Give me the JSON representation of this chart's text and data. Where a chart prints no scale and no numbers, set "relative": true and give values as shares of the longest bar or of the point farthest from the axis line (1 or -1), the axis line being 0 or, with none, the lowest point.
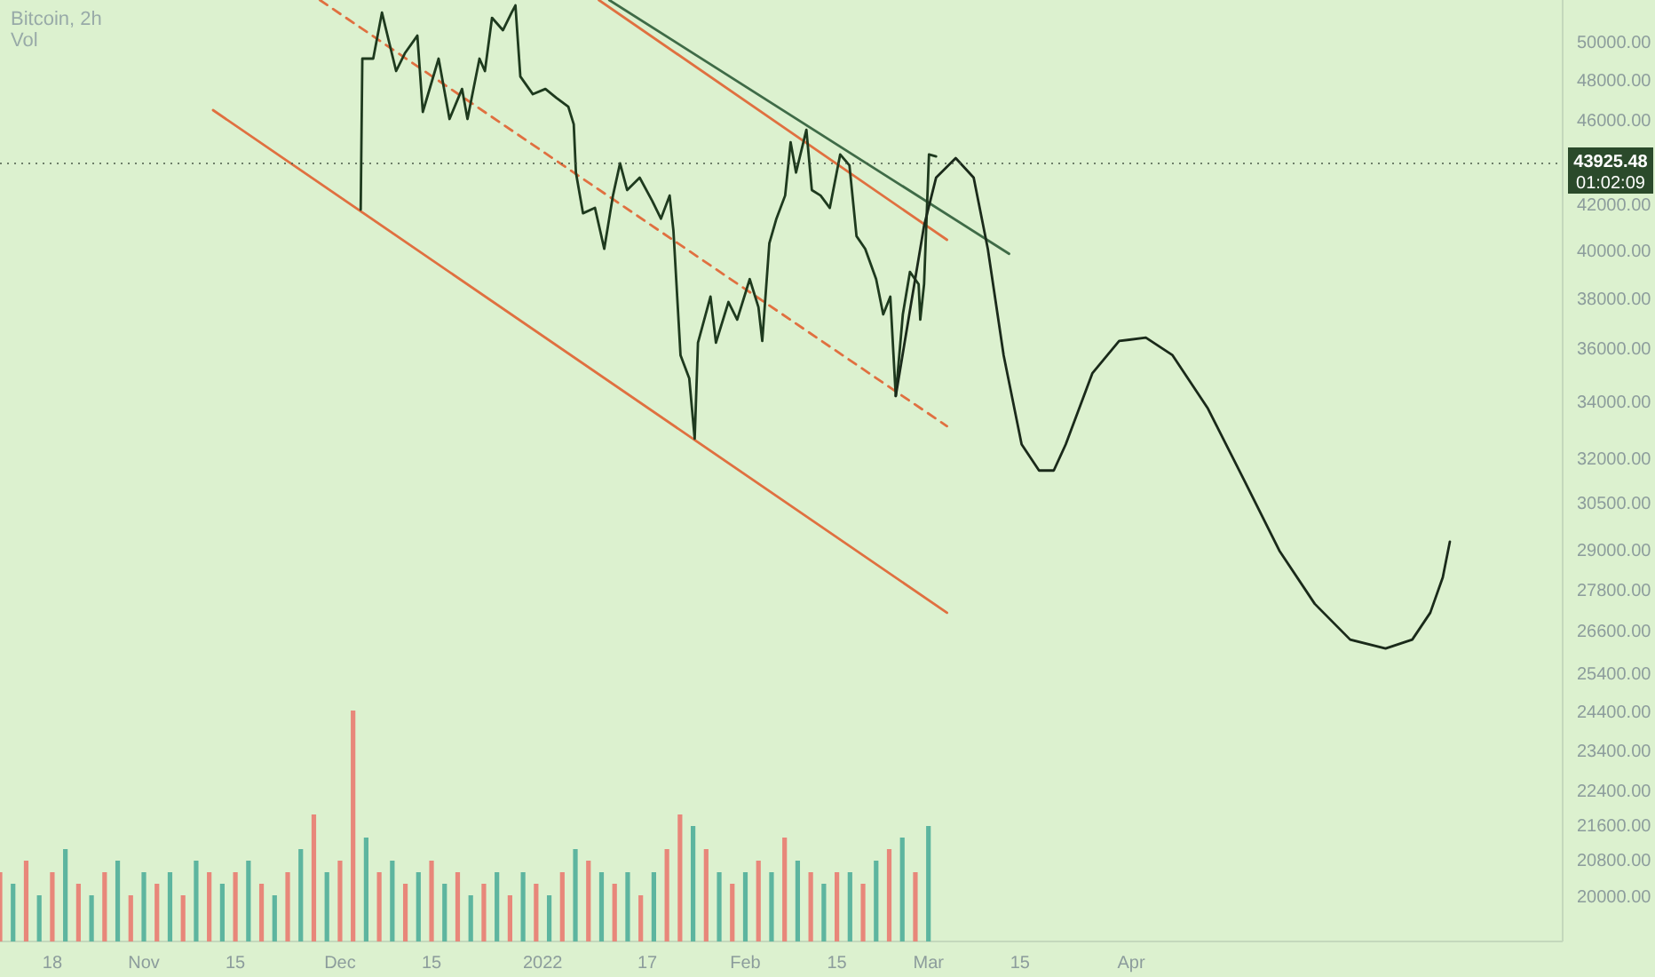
{
  "chart_data": [
    {
      "type": "line",
      "title": "Bitcoin, 2h",
      "log": "y",
      "xlim": [
        "2021-10-10",
        "2022-06-06"
      ],
      "xticks": [
        {
          "value": "2021-10-18",
          "label": "18"
        },
        {
          "value": "2021-11-01",
          "label": "Nov"
        },
        {
          "value": "2021-11-15",
          "label": "15"
        },
        {
          "value": "2021-12-01",
          "label": "Dec"
        },
        {
          "value": "2021-12-15",
          "label": "15"
        },
        {
          "value": "2022-01-01",
          "label": "2022"
        },
        {
          "value": "2022-01-17",
          "label": "17"
        },
        {
          "value": "2022-02-01",
          "label": "Feb"
        },
        {
          "value": "2022-02-15",
          "label": "15"
        },
        {
          "value": "2022-03-01",
          "label": "Mar"
        },
        {
          "value": "2022-03-15",
          "label": "15"
        },
        {
          "value": "2022-04-01",
          "label": "Apr"
        }
      ],
      "ylim": [
        19070,
        52340
      ],
      "yticks": [
        {
          "value": 50000,
          "label": "50000.00"
        },
        {
          "value": 48000,
          "label": "48000.00"
        },
        {
          "value": 46000,
          "label": "46000.00"
        },
        {
          "value": 42000,
          "label": "42000.00"
        },
        {
          "value": 40000,
          "label": "40000.00"
        },
        {
          "value": 38000,
          "label": "38000.00"
        },
        {
          "value": 36000,
          "label": "36000.00"
        },
        {
          "value": 34000,
          "label": "34000.00"
        },
        {
          "value": 32000,
          "label": "32000.00"
        },
        {
          "value": 30500,
          "label": "30500.00"
        },
        {
          "value": 29000,
          "label": "29000.00"
        },
        {
          "value": 27800,
          "label": "27800.00"
        },
        {
          "value": 26600,
          "label": "26600.00"
        },
        {
          "value": 25400,
          "label": "25400.00"
        },
        {
          "value": 24400,
          "label": "24400.00"
        },
        {
          "value": 23400,
          "label": "23400.00"
        },
        {
          "value": 22400,
          "label": "22400.00"
        },
        {
          "value": 21600,
          "label": "21600.00"
        },
        {
          "value": 20800,
          "label": "20800.00"
        },
        {
          "value": 20000,
          "label": "20000.00"
        }
      ],
      "ref_lines": [
        {
          "axis": "y",
          "value": 43925.48,
          "label": "43925.48",
          "color": "#4a5a4a",
          "line_style": "dotted"
        }
      ],
      "annotations": [
        "01:02:09"
      ],
      "series": [
        {
          "type": "line",
          "color": "#e07040",
          "line_style": "dashed",
          "x": [
            "2021-11-27T22:00",
            "2022-03-03T20:00"
          ],
          "values": [
            52340,
            33140
          ]
        },
        {
          "type": "line",
          "color": "#e07040",
          "line_style": "solid",
          "x": [
            "2021-11-11T14:00",
            "2022-03-03T20:00"
          ],
          "values": [
            46510,
            27130
          ]
        },
        {
          "type": "line",
          "color": "#e07040",
          "line_style": "solid",
          "x": [
            "2022-01-09T14:00",
            "2022-03-03T20:00"
          ],
          "values": [
            52340,
            40470
          ]
        },
        {
          "type": "line",
          "color": "#3f6b47",
          "line_style": "solid",
          "x": [
            "2022-01-11T04:00",
            "2022-03-13T08:00"
          ],
          "values": [
            52340,
            39870
          ]
        },
        {
          "type": "line",
          "color": "#1e3a1e",
          "line_style": "solid",
          "x": [
            "2021-12-04T04:00",
            "2021-12-04T10:00",
            "2021-12-06T02:00",
            "2021-12-07T10:00",
            "2021-12-09T14:00",
            "2021-12-10T22:00",
            "2021-12-12T20:00",
            "2021-12-13T16:00",
            "2021-12-16T02:00",
            "2021-12-17T18:00",
            "2021-12-19T16:00",
            "2021-12-20T12:00",
            "2021-12-22T08:00",
            "2021-12-23T04:00",
            "2021-12-24T06:00",
            "2021-12-25T22:00",
            "2021-12-27T06:00",
            "2021-12-27T20:00",
            "2021-12-28T14:00",
            "2021-12-30T12:00",
            "2022-01-01T10:00",
            "2022-01-03T02:00",
            "2022-01-04T22:00",
            "2022-01-05T18:00",
            "2022-01-06T02:00",
            "2022-01-07T04:00",
            "2022-01-09T00:00",
            "2022-01-10T10:00",
            "2022-01-11T18:00",
            "2022-01-12T20:00",
            "2022-01-13T22:00",
            "2022-01-15T20:00",
            "2022-01-17T18:00",
            "2022-01-19T02:00",
            "2022-01-20T10:00",
            "2022-01-21T00:00",
            "2022-01-22T02:00",
            "2022-01-23T10:00",
            "2022-01-24T06:00",
            "2022-01-24T18:00",
            "2022-01-26T16:00",
            "2022-01-27T12:00",
            "2022-01-29T10:00",
            "2022-01-30T18:00",
            "2022-02-01T16:00",
            "2022-02-03T00:00",
            "2022-02-03T14:00",
            "2022-02-04T16:00",
            "2022-02-05T18:00",
            "2022-02-07T02:00",
            "2022-02-07T22:00",
            "2022-02-08T18:00",
            "2022-02-10T08:00",
            "2022-02-11T04:00",
            "2022-02-12T12:00",
            "2022-02-13T22:00",
            "2022-02-15T12:00",
            "2022-02-16T22:00",
            "2022-02-18T00:00",
            "2022-02-19T08:00",
            "2022-02-21T00:00",
            "2022-02-22T02:00",
            "2022-02-23T04:00",
            "2022-02-24T00:00",
            "2022-02-25T02:00",
            "2022-02-26T04:00",
            "2022-02-27T12:00",
            "2022-02-27T18:00",
            "2022-02-28T08:00",
            "2022-03-01T02:00",
            "2022-03-02T04:00"
          ],
          "values": [
            41800,
            49150,
            49150,
            51640,
            48500,
            49430,
            50380,
            46420,
            49150,
            46070,
            47580,
            46070,
            49150,
            48500,
            51350,
            50670,
            51640,
            52040,
            48220,
            47310,
            47580,
            47130,
            46680,
            45810,
            43500,
            41640,
            41880,
            40080,
            42440,
            43930,
            42690,
            43260,
            42200,
            41400,
            42440,
            40860,
            35760,
            34880,
            32700,
            36240,
            38080,
            36240,
            37860,
            37150,
            38800,
            37650,
            36310,
            40320,
            41400,
            42440,
            44940,
            43500,
            45540,
            42690,
            42440,
            41880,
            44350,
            43840,
            40630,
            40080,
            38800,
            37360,
            38080,
            34230,
            37360,
            39100,
            38590,
            37150,
            38590,
            44350,
            44260
          ]
        },
        {
          "type": "line",
          "color": "#1a2a1a",
          "line_style": "solid",
          "x": [
            "2022-02-24T00:00",
            "2022-02-26T04:00",
            "2022-02-28T08:00",
            "2022-03-02T04:00",
            "2022-03-05T04:00",
            "2022-03-07T22:00",
            "2022-03-10T02:00",
            "2022-03-12T12:00",
            "2022-03-15T06:00",
            "2022-03-17T22:00",
            "2022-03-20T04:00",
            "2022-03-22T00:00",
            "2022-03-26T02:00",
            "2022-03-30T04:00",
            "2022-04-03T06:00",
            "2022-04-07T08:00",
            "2022-04-12T18:00",
            "2022-04-18T06:00",
            "2022-04-23T16:00",
            "2022-04-29T02:00",
            "2022-05-04T12:00",
            "2022-05-09T22:00",
            "2022-05-14T00:00",
            "2022-05-16T18:00",
            "2022-05-18T16:00",
            "2022-05-19T18:00"
          ],
          "values": [
            34230,
            37510,
            41090,
            43260,
            44180,
            43260,
            40080,
            35760,
            32500,
            31600,
            31600,
            32500,
            35080,
            36310,
            36440,
            35760,
            33770,
            31290,
            29000,
            27390,
            26360,
            26110,
            26360,
            27130,
            28180,
            29280
          ]
        }
      ]
    },
    {
      "type": "bar",
      "title": "Vol",
      "relative": true,
      "xlim": [
        "2021-10-10",
        "2022-06-06"
      ],
      "x": [
        "2021-10-10",
        "2021-10-12",
        "2021-10-14",
        "2021-10-16",
        "2021-10-18",
        "2021-10-20",
        "2021-10-22",
        "2021-10-24",
        "2021-10-26",
        "2021-10-28",
        "2021-10-30",
        "2021-11-01",
        "2021-11-03",
        "2021-11-05",
        "2021-11-07",
        "2021-11-09",
        "2021-11-11",
        "2021-11-13",
        "2021-11-15",
        "2021-11-17",
        "2021-11-19",
        "2021-11-21",
        "2021-11-23",
        "2021-11-25",
        "2021-11-27",
        "2021-11-29",
        "2021-12-01",
        "2021-12-03",
        "2021-12-05",
        "2021-12-07",
        "2021-12-09",
        "2021-12-11",
        "2021-12-13",
        "2021-12-15",
        "2021-12-17",
        "2021-12-19",
        "2021-12-21",
        "2021-12-23",
        "2021-12-25",
        "2021-12-27",
        "2021-12-29",
        "2021-12-31",
        "2022-01-02",
        "2022-01-04",
        "2022-01-06",
        "2022-01-08",
        "2022-01-10",
        "2022-01-12",
        "2022-01-14",
        "2022-01-16",
        "2022-01-18",
        "2022-01-20",
        "2022-01-22",
        "2022-01-24",
        "2022-01-26",
        "2022-01-28",
        "2022-01-30",
        "2022-02-01",
        "2022-02-03",
        "2022-02-05",
        "2022-02-07",
        "2022-02-09",
        "2022-02-11",
        "2022-02-13",
        "2022-02-15",
        "2022-02-17",
        "2022-02-19",
        "2022-02-21",
        "2022-02-23",
        "2022-02-25",
        "2022-02-27",
        "2022-03-01"
      ],
      "values": [
        0.3,
        0.25,
        0.35,
        0.2,
        0.3,
        0.4,
        0.25,
        0.2,
        0.3,
        0.35,
        0.2,
        0.3,
        0.25,
        0.3,
        0.2,
        0.35,
        0.3,
        0.25,
        0.3,
        0.35,
        0.25,
        0.2,
        0.3,
        0.4,
        0.55,
        0.3,
        0.35,
        1.0,
        0.45,
        0.3,
        0.35,
        0.25,
        0.3,
        0.35,
        0.25,
        0.3,
        0.2,
        0.25,
        0.3,
        0.2,
        0.3,
        0.25,
        0.2,
        0.3,
        0.4,
        0.35,
        0.3,
        0.25,
        0.3,
        0.2,
        0.3,
        0.4,
        0.55,
        0.5,
        0.4,
        0.3,
        0.25,
        0.3,
        0.35,
        0.3,
        0.45,
        0.35,
        0.3,
        0.25,
        0.3,
        0.3,
        0.25,
        0.35,
        0.4,
        0.45,
        0.3,
        0.5
      ],
      "colors": [
        "#e8877a",
        "#5db59f",
        "#e8877a",
        "#5db59f",
        "#e8877a",
        "#5db59f",
        "#e8877a",
        "#5db59f",
        "#e8877a",
        "#5db59f",
        "#e8877a",
        "#5db59f",
        "#e8877a",
        "#5db59f",
        "#e8877a",
        "#5db59f",
        "#e8877a",
        "#5db59f",
        "#e8877a",
        "#5db59f",
        "#e8877a",
        "#5db59f",
        "#e8877a",
        "#5db59f",
        "#e8877a",
        "#5db59f",
        "#e8877a",
        "#e8877a",
        "#5db59f",
        "#e8877a",
        "#5db59f",
        "#e8877a",
        "#5db59f",
        "#e8877a",
        "#5db59f",
        "#e8877a",
        "#5db59f",
        "#e8877a",
        "#5db59f",
        "#e8877a",
        "#5db59f",
        "#e8877a",
        "#5db59f",
        "#e8877a",
        "#5db59f",
        "#e8877a",
        "#5db59f",
        "#e8877a",
        "#5db59f",
        "#e8877a",
        "#5db59f",
        "#e8877a",
        "#e8877a",
        "#5db59f",
        "#e8877a",
        "#5db59f",
        "#e8877a",
        "#5db59f",
        "#e8877a",
        "#5db59f",
        "#e8877a",
        "#5db59f",
        "#e8877a",
        "#5db59f",
        "#e8877a",
        "#5db59f",
        "#e8877a",
        "#5db59f",
        "#e8877a",
        "#5db59f",
        "#e8877a",
        "#5db59f"
      ]
    }
  ]
}
